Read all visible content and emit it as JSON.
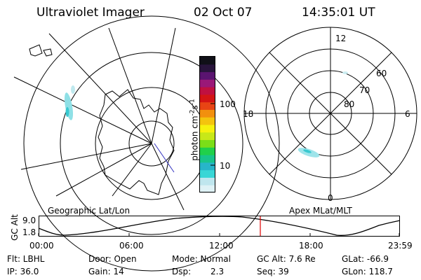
{
  "header": {
    "title": "Ultraviolet Imager",
    "date": "02 Oct 07",
    "time": "14:35:01 UT"
  },
  "colorbar": {
    "label": "photon cm",
    "exp1": "-2",
    "s": "s",
    "exp2": "-1",
    "ticks": [
      "100",
      "10"
    ],
    "colors": [
      "#dff2f6",
      "#bfe6ee",
      "#39d6d6",
      "#27b5c9",
      "#18c48a",
      "#20d04a",
      "#7bde18",
      "#c8e818",
      "#f6f20e",
      "#f4c40e",
      "#f2900e",
      "#e84414",
      "#d41414",
      "#c01040",
      "#9a1878",
      "#5a1470",
      "#28143c",
      "#101018"
    ]
  },
  "left_map": {
    "caption": "Geographic Lat/Lon"
  },
  "right_map": {
    "caption": "Apex MLat/MLT",
    "mlt_labels": {
      "top": "12",
      "right": "6",
      "bottom": "0",
      "left": "18"
    },
    "lat_labels": [
      "60",
      "70",
      "80"
    ]
  },
  "altitude_plot": {
    "y_label": "GC Alt",
    "y_ticks": [
      "9.0",
      "1.8"
    ],
    "x_ticks": [
      "00:00",
      "06:00",
      "12:00",
      "18:00",
      "23:59"
    ],
    "current_time_marker": "14:35"
  },
  "footer": {
    "flt": "Flt: LBHL",
    "ip": "IP: 36.0",
    "door": "Door: Open",
    "gain": "Gain: 14",
    "mode": "Mode: Normal",
    "dsp_label": "Dsp:",
    "dsp_value": "2.3",
    "gcalt": "GC Alt: 7.6 Re",
    "seq": "Seq: 39",
    "glat": "GLat: -66.9",
    "glon": "GLon: 118.7"
  }
}
